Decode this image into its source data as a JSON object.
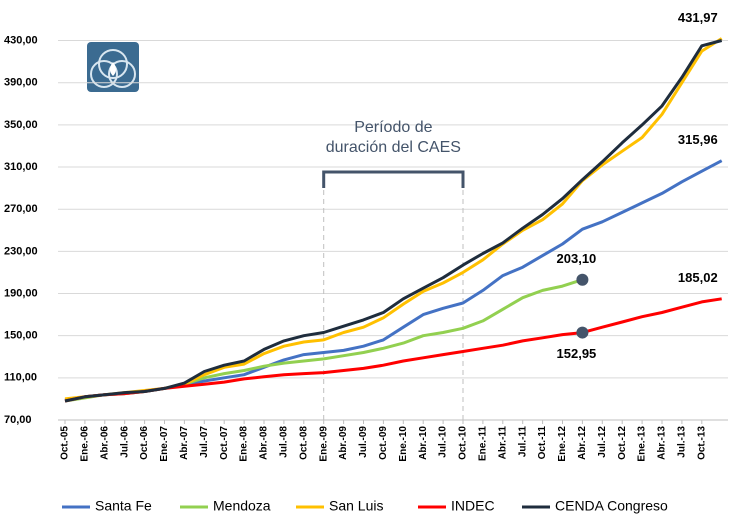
{
  "chart_data": {
    "type": "line",
    "annotation": [
      "Período de",
      "duración del CAES"
    ],
    "categories": [
      "Oct.-05",
      "Ene.-06",
      "Abr.-06",
      "Jul.-06",
      "Oct.-06",
      "Ene.-07",
      "Abr.-07",
      "Jul.-07",
      "Oct.-07",
      "Ene.-08",
      "Abr.-08",
      "Jul.-08",
      "Oct.-08",
      "Ene.-09",
      "Abr.-09",
      "Jul.-09",
      "Oct.-09",
      "Ene.-10",
      "Abr.-10",
      "Jul.-10",
      "Oct.-10",
      "Ene.-11",
      "Abr.-11",
      "Jul.-11",
      "Oct.-11",
      "Ene.-12",
      "Abr.-12",
      "Jul.-12",
      "Oct.-12",
      "Ene.-13",
      "Abr.-13",
      "Jul.-13",
      "Oct.-13",
      null
    ],
    "series": [
      {
        "name": "Santa Fe",
        "color": "#4472c4",
        "values": [
          89,
          92,
          94,
          95,
          97,
          100,
          103,
          107,
          110,
          113,
          120,
          127,
          132,
          134,
          136,
          140,
          146,
          158,
          170,
          176,
          181,
          193,
          207,
          215,
          226,
          237,
          251,
          258,
          267,
          276,
          285,
          296,
          306,
          315.96
        ],
        "value_labels": [
          null,
          null,
          null,
          null,
          null,
          null,
          null,
          null,
          null,
          null,
          null,
          null,
          null,
          null,
          null,
          null,
          null,
          null,
          null,
          null,
          null,
          null,
          null,
          null,
          null,
          null,
          null,
          null,
          null,
          null,
          null,
          null,
          null,
          "315,96"
        ]
      },
      {
        "name": "Mendoza",
        "color": "#92d050",
        "values": [
          88,
          91,
          94,
          95,
          97,
          100,
          104,
          110,
          114,
          117,
          121,
          124,
          126,
          128,
          131,
          134,
          138,
          143,
          150,
          153,
          157,
          164,
          175,
          186,
          193,
          197,
          203.1,
          null,
          null,
          null,
          null,
          null,
          null,
          null
        ],
        "value_labels": [
          null,
          null,
          null,
          null,
          null,
          null,
          null,
          null,
          null,
          null,
          null,
          null,
          null,
          null,
          null,
          null,
          null,
          null,
          null,
          null,
          null,
          null,
          null,
          null,
          null,
          null,
          "203,10",
          null,
          null,
          null,
          null,
          null,
          null,
          null
        ]
      },
      {
        "name": "San Luis",
        "color": "#ffc000",
        "values": [
          90,
          92,
          94,
          96,
          98,
          100,
          104,
          113,
          120,
          123,
          133,
          140,
          144,
          146,
          153,
          158,
          167,
          180,
          192,
          200,
          210,
          222,
          237,
          250,
          260,
          275,
          297,
          312,
          325,
          338,
          360,
          390,
          420,
          431.97
        ],
        "value_labels": [
          null,
          null,
          null,
          null,
          null,
          null,
          null,
          null,
          null,
          null,
          null,
          null,
          null,
          null,
          null,
          null,
          null,
          null,
          null,
          null,
          null,
          null,
          null,
          null,
          null,
          null,
          null,
          null,
          null,
          null,
          null,
          null,
          null,
          "431,97"
        ]
      },
      {
        "name": "INDEC",
        "color": "#ff0000",
        "values": [
          88,
          92,
          94,
          95,
          97,
          100,
          102,
          104,
          106,
          109,
          111,
          113,
          114,
          115,
          117,
          119,
          122,
          126,
          129,
          132,
          135,
          138,
          141,
          145,
          148,
          151,
          152.95,
          158,
          163,
          168,
          172,
          177,
          182,
          185.02
        ],
        "value_labels": [
          null,
          null,
          null,
          null,
          null,
          null,
          null,
          null,
          null,
          null,
          null,
          null,
          null,
          null,
          null,
          null,
          null,
          null,
          null,
          null,
          null,
          null,
          null,
          null,
          null,
          null,
          "152,95",
          null,
          null,
          null,
          null,
          null,
          null,
          "185,02"
        ]
      },
      {
        "name": "CENDA Congreso",
        "color": "#1f2d3d",
        "values": [
          88,
          92,
          94,
          96,
          97,
          100,
          105,
          116,
          122,
          126,
          137,
          145,
          150,
          153,
          159,
          165,
          172,
          185,
          195,
          205,
          217,
          228,
          238,
          252,
          265,
          280,
          298,
          315,
          333,
          350,
          368,
          395,
          425,
          430
        ]
      }
    ],
    "ylim": [
      70,
      440
    ],
    "yticks": [
      {
        "value": 70,
        "label": "70,00"
      },
      {
        "value": 110,
        "label": "110,00"
      },
      {
        "value": 150,
        "label": "150,00"
      },
      {
        "value": 190,
        "label": "190,00"
      },
      {
        "value": 230,
        "label": "230,00"
      },
      {
        "value": 270,
        "label": "270,00"
      },
      {
        "value": 310,
        "label": "310,00"
      },
      {
        "value": 350,
        "label": "350,00"
      },
      {
        "value": 390,
        "label": "390,00"
      },
      {
        "value": 430,
        "label": "430,00"
      }
    ],
    "grid": true,
    "legend": "bottom"
  }
}
